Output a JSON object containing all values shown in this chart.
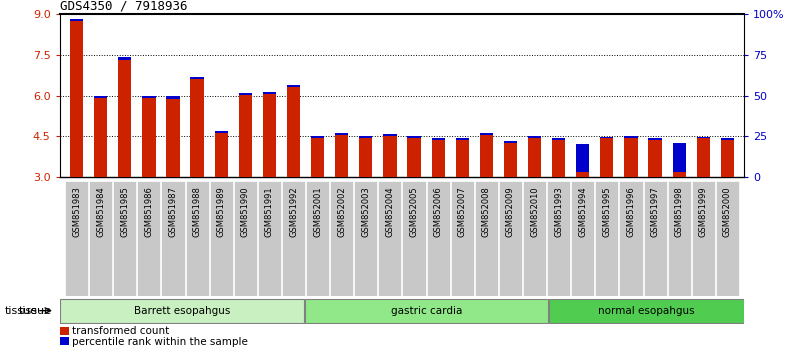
{
  "title": "GDS4350 / 7918936",
  "samples": [
    "GSM851983",
    "GSM851984",
    "GSM851985",
    "GSM851986",
    "GSM851987",
    "GSM851988",
    "GSM851989",
    "GSM851990",
    "GSM851991",
    "GSM851992",
    "GSM852001",
    "GSM852002",
    "GSM852003",
    "GSM852004",
    "GSM852005",
    "GSM852006",
    "GSM852007",
    "GSM852008",
    "GSM852009",
    "GSM852010",
    "GSM851993",
    "GSM851994",
    "GSM851995",
    "GSM851996",
    "GSM851997",
    "GSM851998",
    "GSM851999",
    "GSM852000"
  ],
  "red_values": [
    8.75,
    5.92,
    7.3,
    5.92,
    5.88,
    6.62,
    4.62,
    6.02,
    6.05,
    6.3,
    4.45,
    4.55,
    4.45,
    4.5,
    4.45,
    4.38,
    4.35,
    4.55,
    4.25,
    4.45,
    4.38,
    3.2,
    4.42,
    4.45,
    4.38,
    3.18,
    4.42,
    4.35
  ],
  "blue_values": [
    8.83,
    5.98,
    7.42,
    5.98,
    5.98,
    6.68,
    4.68,
    6.08,
    6.08,
    6.38,
    4.52,
    4.62,
    4.5,
    4.58,
    4.52,
    4.42,
    4.38,
    4.62,
    4.32,
    4.52,
    4.42,
    4.2,
    4.48,
    4.52,
    4.42,
    4.25,
    4.48,
    4.42
  ],
  "groups": [
    {
      "label": "Barrett esopahgus",
      "start": 0,
      "end": 10,
      "color": "#c8f0c0"
    },
    {
      "label": "gastric cardia",
      "start": 10,
      "end": 20,
      "color": "#90e888"
    },
    {
      "label": "normal esopahgus",
      "start": 20,
      "end": 28,
      "color": "#50cc50"
    }
  ],
  "ylim": [
    3.0,
    9.0
  ],
  "yticks": [
    3.0,
    4.5,
    6.0,
    7.5,
    9.0
  ],
  "right_yticks": [
    0,
    25,
    50,
    75,
    100
  ],
  "right_yticklabels": [
    "0",
    "25",
    "50",
    "75",
    "100%"
  ],
  "bar_color_red": "#cc2200",
  "bar_color_blue": "#0000cc",
  "bar_width": 0.55,
  "tissue_label": "tissue",
  "legend_items": [
    {
      "color": "#cc2200",
      "label": "transformed count"
    },
    {
      "color": "#0000cc",
      "label": "percentile rank within the sample"
    }
  ],
  "tick_bg_color": "#c8c8c8",
  "grid_lines": [
    4.5,
    6.0,
    7.5
  ]
}
